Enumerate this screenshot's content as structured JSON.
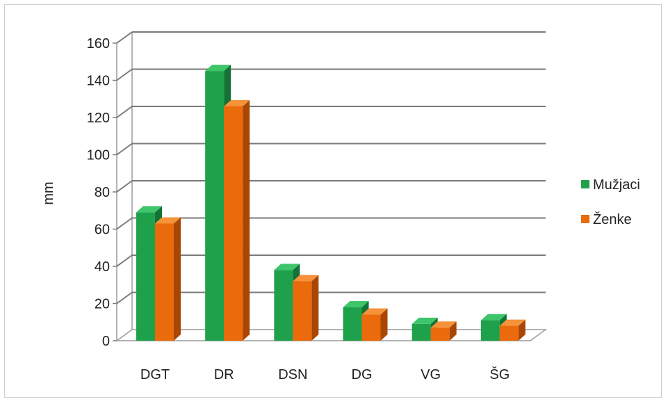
{
  "chart_data": {
    "type": "bar",
    "categories": [
      "DGT",
      "DR",
      "DSN",
      "DG",
      "VG",
      "ŠG"
    ],
    "series": [
      {
        "name": "Mužjaci",
        "values": [
          69,
          145,
          38,
          18,
          9,
          11
        ],
        "color": "#1fa14b",
        "top": "#3ec56a",
        "side": "#137236"
      },
      {
        "name": "Ženke",
        "values": [
          63,
          126,
          32,
          14,
          7,
          8
        ],
        "color": "#ea6a0c",
        "top": "#f5923a",
        "side": "#a94604"
      }
    ],
    "title": "",
    "xlabel": "",
    "ylabel": "mm",
    "ylim": [
      0,
      160
    ],
    "yticks": [
      "0",
      "20",
      "40",
      "60",
      "80",
      "100",
      "120",
      "140",
      "160"
    ],
    "grid": true,
    "legend": "right"
  }
}
